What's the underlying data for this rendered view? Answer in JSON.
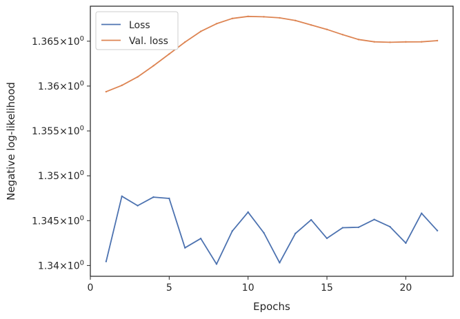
{
  "chart_data": {
    "type": "line",
    "title": "",
    "xlabel": "Epochs",
    "ylabel": "Negative log-likelihood",
    "xlim": [
      0,
      23
    ],
    "ylim": [
      1.3388,
      1.3689
    ],
    "xticks": [
      0,
      5,
      10,
      15,
      20
    ],
    "yticks": [
      {
        "value": 1.34,
        "label": "1.34",
        "exp": "0"
      },
      {
        "value": 1.345,
        "label": "1.345",
        "exp": "0"
      },
      {
        "value": 1.35,
        "label": "1.35",
        "exp": "0"
      },
      {
        "value": 1.355,
        "label": "1.355",
        "exp": "0"
      },
      {
        "value": 1.36,
        "label": "1.36",
        "exp": "0"
      },
      {
        "value": 1.365,
        "label": "1.365",
        "exp": "0"
      }
    ],
    "tick_base": "10",
    "grid": false,
    "legend_position": "top-left",
    "x": [
      1,
      2,
      3,
      4,
      5,
      6,
      7,
      8,
      9,
      10,
      11,
      12,
      13,
      14,
      15,
      16,
      17,
      18,
      19,
      20,
      21,
      22
    ],
    "series": [
      {
        "name": "Loss",
        "color": "#4c72b0",
        "values": [
          1.34045,
          1.34772,
          1.34667,
          1.34762,
          1.34748,
          1.34197,
          1.34301,
          1.34016,
          1.34384,
          1.34595,
          1.34364,
          1.34031,
          1.34357,
          1.34509,
          1.34303,
          1.34421,
          1.34426,
          1.34513,
          1.34432,
          1.3425,
          1.34582,
          1.34389
        ]
      },
      {
        "name": "Val. loss",
        "color": "#dd8452",
        "values": [
          1.35937,
          1.36008,
          1.36102,
          1.36226,
          1.36357,
          1.3649,
          1.36609,
          1.36695,
          1.36753,
          1.36776,
          1.36772,
          1.3676,
          1.3673,
          1.3668,
          1.36631,
          1.36573,
          1.36519,
          1.36493,
          1.36488,
          1.36492,
          1.36493,
          1.36506
        ]
      }
    ]
  }
}
